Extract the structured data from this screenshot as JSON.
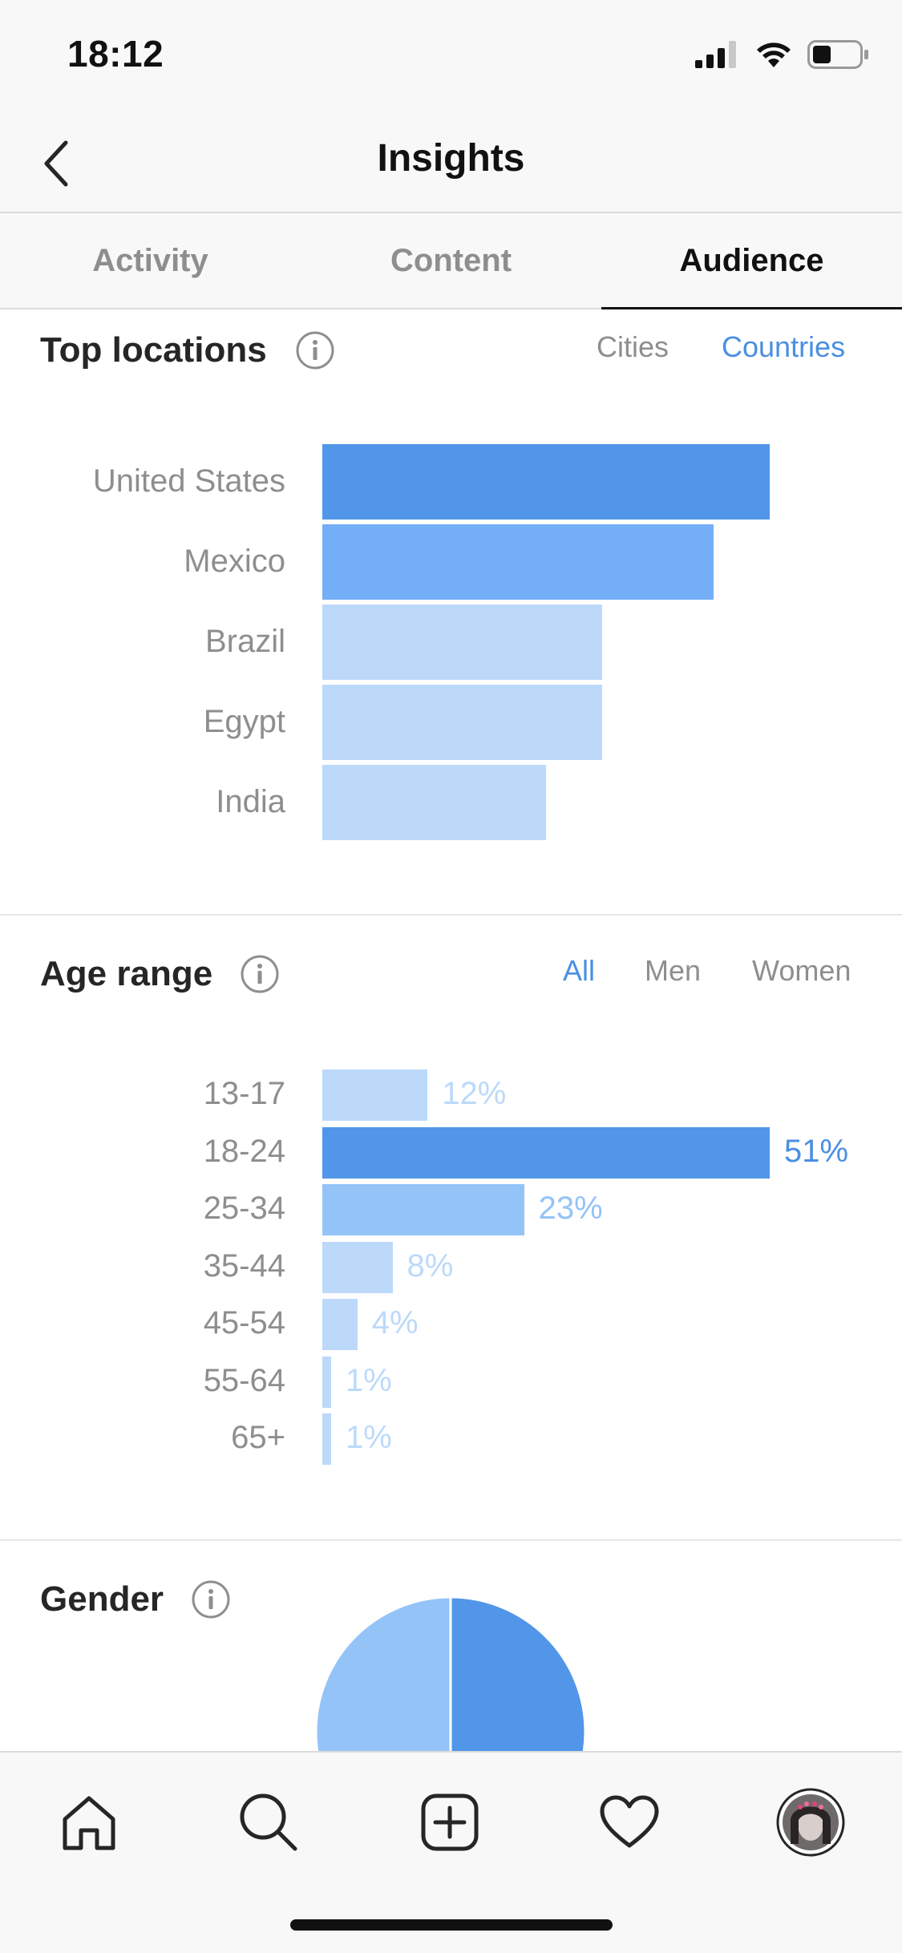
{
  "status_bar": {
    "time": "18:12",
    "icons": [
      "signal-icon",
      "wifi-icon",
      "battery-icon"
    ]
  },
  "nav": {
    "title": "Insights",
    "back_icon": "chevron-left-icon"
  },
  "tabs": [
    {
      "label": "Activity",
      "active": false
    },
    {
      "label": "Content",
      "active": false
    },
    {
      "label": "Audience",
      "active": true
    }
  ],
  "top_locations": {
    "title": "Top locations",
    "info_icon": "info-icon",
    "toggle": [
      {
        "label": "Cities",
        "active": false
      },
      {
        "label": "Countries",
        "active": true
      }
    ]
  },
  "age_range": {
    "title": "Age range",
    "info_icon": "info-icon",
    "toggle": [
      {
        "label": "All",
        "active": true
      },
      {
        "label": "Men",
        "active": false
      },
      {
        "label": "Women",
        "active": false
      }
    ]
  },
  "gender": {
    "title": "Gender",
    "info_icon": "info-icon"
  },
  "colors": {
    "accent": "#4a8fe2",
    "bar_dark": "#5196e8",
    "bar_mid": "#74aef7",
    "bar_light": "#bcd9fa",
    "bar_midlight": "#94c3f8"
  },
  "chart_data": [
    {
      "type": "bar",
      "orientation": "horizontal",
      "categories": [
        "United States",
        "Mexico",
        "Brazil",
        "Egypt",
        "India"
      ],
      "values": [
        100,
        87.5,
        62.5,
        62.5,
        50
      ],
      "xlabel": "",
      "ylabel": ""
    },
    {
      "type": "bar",
      "orientation": "horizontal",
      "categories": [
        "13-17",
        "18-24",
        "25-34",
        "35-44",
        "45-54",
        "55-64",
        "65+"
      ],
      "values": [
        12,
        51,
        23,
        8,
        4,
        1,
        1
      ],
      "value_labels": [
        "12%",
        "51%",
        "23%",
        "8%",
        "4%",
        "1%",
        "1%"
      ],
      "xlim": [
        0,
        51
      ]
    },
    {
      "type": "pie",
      "categories": [
        "",
        ""
      ],
      "values": [
        50,
        50
      ],
      "partially_visible": true
    }
  ],
  "bottom_bar": {
    "items": [
      "home-icon",
      "search-icon",
      "add-post-icon",
      "heart-icon",
      "profile-avatar"
    ]
  }
}
